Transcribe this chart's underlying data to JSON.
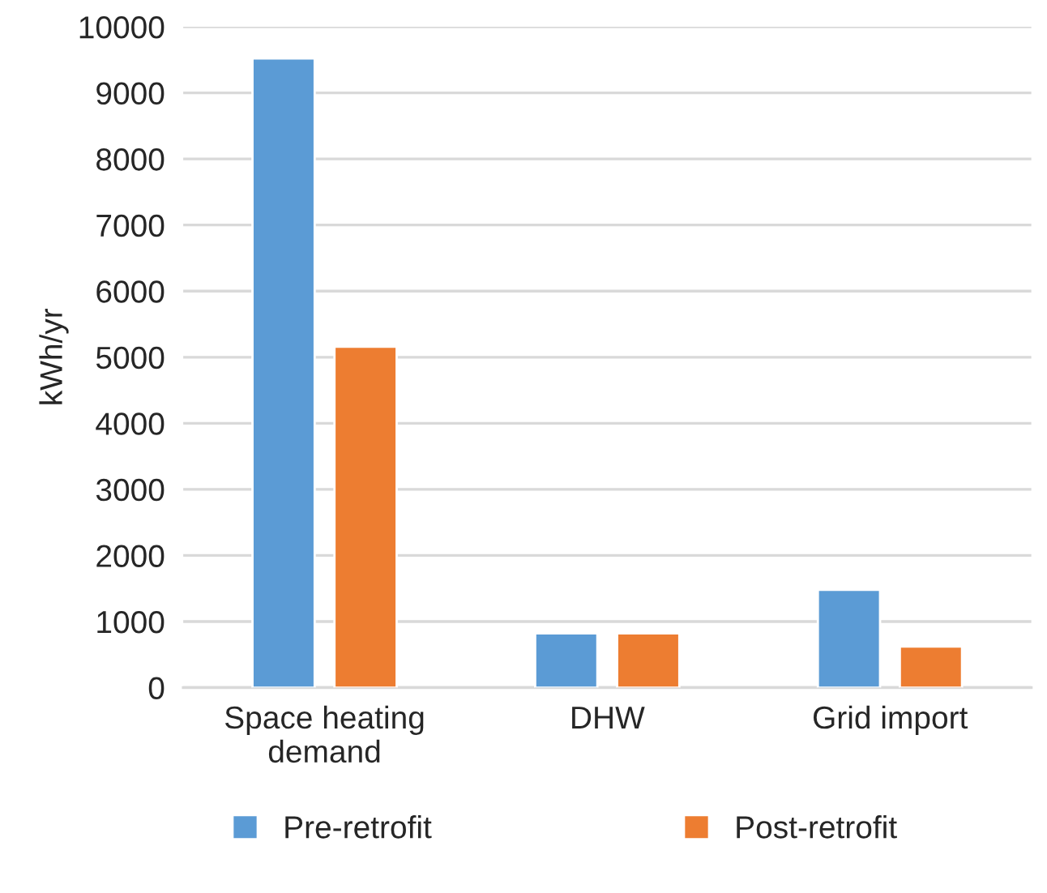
{
  "chart_data": {
    "type": "bar",
    "ylabel": "kWh/yr",
    "categories": [
      "Space heating\ndemand",
      "DHW",
      "Grid import"
    ],
    "series": [
      {
        "name": "Pre-retrofit",
        "color": "#5b9bd5",
        "values": [
          9520,
          820,
          1480
        ]
      },
      {
        "name": "Post-retrofit",
        "color": "#ed7d31",
        "values": [
          5160,
          820,
          620
        ]
      }
    ],
    "ylim": [
      0,
      10000
    ],
    "yticks": [
      0,
      1000,
      2000,
      3000,
      4000,
      5000,
      6000,
      7000,
      8000,
      9000,
      10000
    ],
    "grid": "y",
    "legend": "bottom"
  }
}
